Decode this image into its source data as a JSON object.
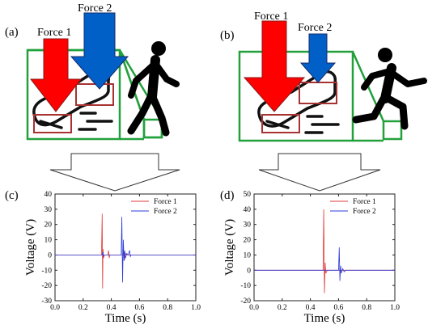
{
  "panels": {
    "a": {
      "label": "(a)",
      "force1_label": "Force 1",
      "force2_label": "Force 2"
    },
    "b": {
      "label": "(b)",
      "force1_label": "Force 1",
      "force2_label": "Force 2"
    },
    "c": {
      "label": "(c)"
    },
    "d": {
      "label": "(d)"
    }
  },
  "colors": {
    "force1": "#ff0000",
    "force2": "#0060c8",
    "frame": "#22a03c",
    "sensor_box": "#a83232",
    "trace1": "#e23b3b",
    "trace2": "#2b3bd8"
  },
  "icons": {
    "a_figure": "walking-person-icon",
    "b_figure": "running-person-icon",
    "shoe": "shoe-sole-icon"
  },
  "chart_data": [
    {
      "type": "line",
      "panel": "(c)",
      "xlabel": "Time (s)",
      "ylabel": "Voltage (V)",
      "xlim": [
        0.0,
        1.0
      ],
      "ylim": [
        -30,
        40
      ],
      "xticks": [
        "0.0",
        "0.2",
        "0.4",
        "0.6",
        "0.8",
        "1.0"
      ],
      "yticks": [
        "-30",
        "-20",
        "-10",
        "0",
        "10",
        "20",
        "30",
        "40"
      ],
      "legend_position": "top-right",
      "series": [
        {
          "name": "Force 1",
          "color": "#e23b3b",
          "x": [
            0.0,
            0.33,
            0.335,
            0.338,
            0.341,
            0.345,
            0.35,
            0.375,
            0.38,
            0.385,
            0.39,
            0.43,
            0.485,
            0.49,
            0.495,
            0.5,
            0.51,
            1.0
          ],
          "y": [
            0,
            0,
            27,
            -22,
            4,
            -2,
            0,
            0,
            3,
            -2,
            0,
            0,
            0,
            2,
            -3,
            1,
            0,
            0
          ]
        },
        {
          "name": "Force 2",
          "color": "#2b3bd8",
          "x": [
            0.0,
            0.335,
            0.34,
            0.345,
            0.35,
            0.47,
            0.475,
            0.48,
            0.485,
            0.49,
            0.495,
            0.5,
            0.51,
            0.52,
            0.53,
            0.535,
            0.54,
            0.55,
            1.0
          ],
          "y": [
            0,
            0,
            2,
            -1,
            0,
            0,
            25,
            -18,
            10,
            -4,
            3,
            -2,
            1,
            0,
            3,
            -1,
            0,
            0,
            0
          ]
        }
      ]
    },
    {
      "type": "line",
      "panel": "(d)",
      "xlabel": "Time (s)",
      "ylabel": "Voltage (V)",
      "xlim": [
        0.0,
        1.0
      ],
      "ylim": [
        -20,
        50
      ],
      "xticks": [
        "0.0",
        "0.2",
        "0.4",
        "0.6",
        "0.8",
        "1.0"
      ],
      "yticks": [
        "-20",
        "-10",
        "0",
        "10",
        "20",
        "30",
        "40",
        "50"
      ],
      "legend_position": "top-right",
      "series": [
        {
          "name": "Force 1",
          "color": "#e23b3b",
          "x": [
            0.0,
            0.49,
            0.495,
            0.5,
            0.505,
            0.51,
            0.52,
            1.0
          ],
          "y": [
            0,
            0,
            40,
            -15,
            5,
            -2,
            0,
            0
          ]
        },
        {
          "name": "Force 2",
          "color": "#2b3bd8",
          "x": [
            0.0,
            0.6,
            0.605,
            0.61,
            0.615,
            0.62,
            0.63,
            0.64,
            0.65,
            1.0
          ],
          "y": [
            0,
            0,
            15,
            -7,
            3,
            -2,
            1,
            -1,
            0,
            0
          ]
        }
      ]
    }
  ]
}
